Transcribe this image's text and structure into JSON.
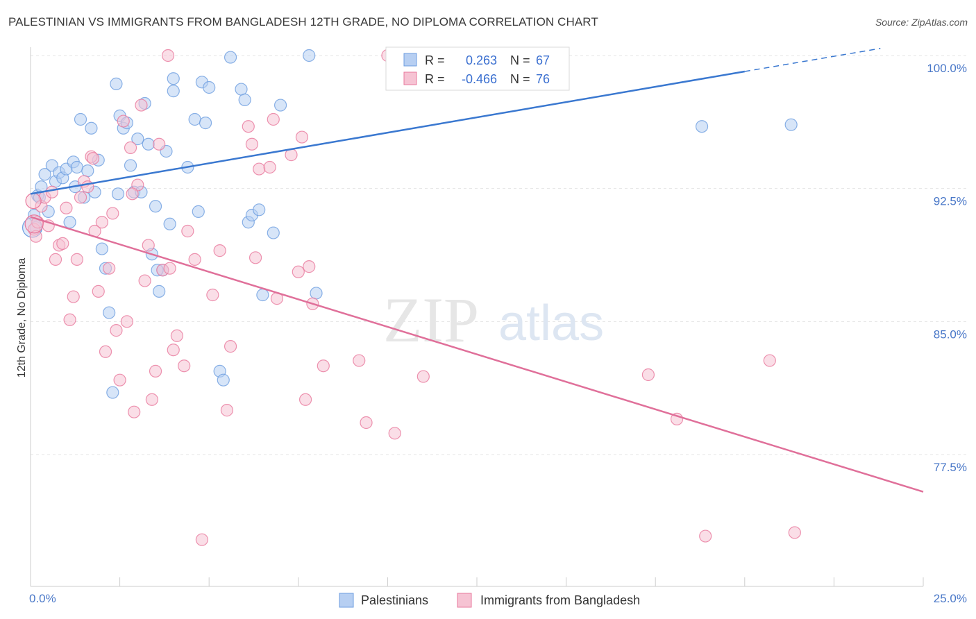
{
  "title": "PALESTINIAN VS IMMIGRANTS FROM BANGLADESH 12TH GRADE, NO DIPLOMA CORRELATION CHART",
  "source": "Source: ZipAtlas.com",
  "watermark": {
    "part1": "ZIP",
    "part2": "atlas"
  },
  "chart_data": {
    "type": "scatter",
    "xlabel": "",
    "ylabel": "12th Grade, No Diploma",
    "xlim": [
      0.0,
      25.0
    ],
    "ylim": [
      71.0,
      101.0
    ],
    "x_tick_labels": {
      "left": "0.0%",
      "right": "25.0%"
    },
    "y_ticks": [
      {
        "value": 100.0,
        "label": "100.0%"
      },
      {
        "value": 92.5,
        "label": "92.5%"
      },
      {
        "value": 85.0,
        "label": "85.0%"
      },
      {
        "value": 77.5,
        "label": "77.5%"
      }
    ],
    "legend": {
      "r_label": "R =",
      "n_label": "N =",
      "entries": [
        {
          "name": "Palestinians",
          "r": "0.263",
          "n": "67"
        },
        {
          "name": "Immigrants from Bangladesh",
          "r": "-0.466",
          "n": "76"
        }
      ]
    },
    "series": [
      {
        "name": "Palestinians",
        "color": "#6d9ee0",
        "fill": "#b7cff2",
        "trend": {
          "x0": 0.0,
          "y0": 92.2,
          "x1": 20.0,
          "y1": 99.1,
          "dash_to_x": 23.8,
          "dash_to_y": 100.4
        },
        "points": [
          [
            0.1,
            91.0
          ],
          [
            0.2,
            92.1
          ],
          [
            0.3,
            92.6
          ],
          [
            0.4,
            93.3
          ],
          [
            0.5,
            91.2
          ],
          [
            0.6,
            93.8
          ],
          [
            0.7,
            92.9
          ],
          [
            0.8,
            93.4
          ],
          [
            0.9,
            93.1
          ],
          [
            1.0,
            93.6
          ],
          [
            1.1,
            90.6
          ],
          [
            1.2,
            94.0
          ],
          [
            1.3,
            93.7
          ],
          [
            1.4,
            96.4
          ],
          [
            1.5,
            92.0
          ],
          [
            1.6,
            93.5
          ],
          [
            1.7,
            95.9
          ],
          [
            1.8,
            92.3
          ],
          [
            1.9,
            94.1
          ],
          [
            2.0,
            89.1
          ],
          [
            2.1,
            88.0
          ],
          [
            2.2,
            85.5
          ],
          [
            2.3,
            81.0
          ],
          [
            2.4,
            98.4
          ],
          [
            2.5,
            96.6
          ],
          [
            2.6,
            95.9
          ],
          [
            2.7,
            96.2
          ],
          [
            2.8,
            93.8
          ],
          [
            2.9,
            92.3
          ],
          [
            3.0,
            95.3
          ],
          [
            3.1,
            92.3
          ],
          [
            3.2,
            97.3
          ],
          [
            3.3,
            95.0
          ],
          [
            3.4,
            88.8
          ],
          [
            3.5,
            91.5
          ],
          [
            3.6,
            86.7
          ],
          [
            3.7,
            87.9
          ],
          [
            3.8,
            94.6
          ],
          [
            3.9,
            90.5
          ],
          [
            4.0,
            98.0
          ],
          [
            4.0,
            98.7
          ],
          [
            4.4,
            93.7
          ],
          [
            4.6,
            96.4
          ],
          [
            4.7,
            91.2
          ],
          [
            4.8,
            98.5
          ],
          [
            4.9,
            96.2
          ],
          [
            5.0,
            98.2
          ],
          [
            5.3,
            82.2
          ],
          [
            5.4,
            81.7
          ],
          [
            5.6,
            99.9
          ],
          [
            5.9,
            98.1
          ],
          [
            6.0,
            97.5
          ],
          [
            6.1,
            90.6
          ],
          [
            6.2,
            91.0
          ],
          [
            6.4,
            91.3
          ],
          [
            6.5,
            86.5
          ],
          [
            6.8,
            90.0
          ],
          [
            7.0,
            97.2
          ],
          [
            7.8,
            100.0
          ],
          [
            8.0,
            86.6
          ],
          [
            18.8,
            96.0
          ],
          [
            21.3,
            96.1
          ],
          [
            0.15,
            90.3
          ],
          [
            0.25,
            92.0
          ],
          [
            1.25,
            92.6
          ],
          [
            2.45,
            92.2
          ],
          [
            3.55,
            87.9
          ]
        ]
      },
      {
        "name": "Immigrants from Bangladesh",
        "color": "#e8789c",
        "fill": "#f6c3d3",
        "trend": {
          "x0": 0.0,
          "y0": 90.9,
          "x1": 25.0,
          "y1": 75.4
        },
        "points": [
          [
            0.1,
            90.2
          ],
          [
            0.2,
            90.6
          ],
          [
            0.3,
            91.5
          ],
          [
            0.4,
            92.0
          ],
          [
            0.5,
            90.4
          ],
          [
            0.6,
            92.3
          ],
          [
            0.7,
            88.5
          ],
          [
            0.8,
            89.3
          ],
          [
            0.9,
            89.4
          ],
          [
            1.0,
            91.4
          ],
          [
            1.1,
            85.1
          ],
          [
            1.2,
            86.4
          ],
          [
            1.3,
            88.5
          ],
          [
            1.4,
            92.0
          ],
          [
            1.5,
            92.9
          ],
          [
            1.6,
            92.6
          ],
          [
            1.7,
            94.3
          ],
          [
            1.8,
            90.1
          ],
          [
            1.9,
            86.7
          ],
          [
            2.0,
            90.6
          ],
          [
            2.1,
            83.3
          ],
          [
            2.2,
            88.0
          ],
          [
            2.3,
            91.1
          ],
          [
            2.4,
            84.5
          ],
          [
            2.5,
            81.7
          ],
          [
            2.6,
            96.3
          ],
          [
            2.7,
            85.0
          ],
          [
            2.8,
            94.8
          ],
          [
            2.9,
            79.9
          ],
          [
            3.0,
            92.7
          ],
          [
            3.1,
            97.2
          ],
          [
            3.2,
            87.3
          ],
          [
            3.3,
            89.3
          ],
          [
            3.4,
            80.6
          ],
          [
            3.5,
            82.2
          ],
          [
            3.6,
            95.0
          ],
          [
            3.7,
            87.9
          ],
          [
            3.9,
            88.0
          ],
          [
            4.0,
            83.4
          ],
          [
            4.1,
            84.2
          ],
          [
            4.3,
            82.5
          ],
          [
            4.4,
            90.1
          ],
          [
            4.6,
            88.5
          ],
          [
            4.8,
            72.7
          ],
          [
            5.1,
            86.5
          ],
          [
            5.3,
            89.0
          ],
          [
            5.5,
            80.0
          ],
          [
            5.6,
            83.6
          ],
          [
            6.1,
            96.0
          ],
          [
            6.2,
            95.0
          ],
          [
            6.3,
            88.6
          ],
          [
            6.4,
            93.6
          ],
          [
            6.7,
            93.7
          ],
          [
            6.8,
            96.4
          ],
          [
            6.9,
            86.3
          ],
          [
            7.3,
            94.4
          ],
          [
            7.5,
            87.8
          ],
          [
            7.6,
            95.4
          ],
          [
            7.7,
            80.6
          ],
          [
            7.8,
            88.1
          ],
          [
            7.9,
            86.0
          ],
          [
            8.2,
            82.5
          ],
          [
            9.2,
            82.8
          ],
          [
            9.4,
            79.3
          ],
          [
            10.0,
            100.0
          ],
          [
            10.2,
            78.7
          ],
          [
            11.0,
            81.9
          ],
          [
            17.3,
            82.0
          ],
          [
            18.1,
            79.5
          ],
          [
            18.9,
            72.9
          ],
          [
            20.7,
            82.8
          ],
          [
            21.4,
            73.1
          ],
          [
            0.15,
            89.8
          ],
          [
            1.75,
            94.2
          ],
          [
            3.85,
            100.0
          ],
          [
            2.85,
            92.2
          ]
        ]
      }
    ]
  }
}
